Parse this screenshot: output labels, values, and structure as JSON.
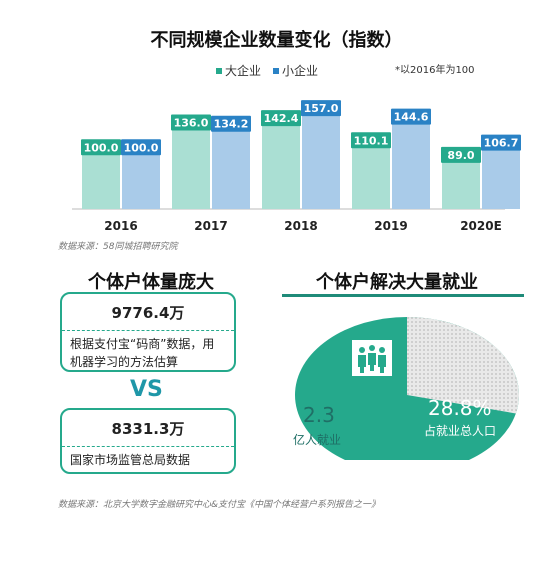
{
  "colors": {
    "large": "#25a98c",
    "small": "#2a82c5",
    "large_light": "#aadfd3",
    "small_light": "#a9cbe9",
    "accent": "#1f97a8"
  },
  "chart_data": {
    "type": "bar",
    "title": "不同规模企业数量变化（指数）",
    "categories": [
      "2016",
      "2017",
      "2018",
      "2019",
      "2020E"
    ],
    "series": [
      {
        "name": "大企业",
        "values": [
          100.0,
          136.0,
          142.4,
          110.1,
          89.0
        ]
      },
      {
        "name": "小企业",
        "values": [
          100.0,
          134.2,
          157.0,
          144.6,
          106.7
        ]
      }
    ],
    "value_labels": [
      [
        "100.0",
        "136.0",
        "142.4",
        "110.1",
        "89.0"
      ],
      [
        "100.0",
        "134.2",
        "157.0",
        "144.6",
        "106.7"
      ]
    ],
    "note": "*以2016年为100",
    "legend_position": "top-center",
    "grid": false
  },
  "source1": "数据来源：58同城招聘研究院",
  "left": {
    "title": "个体户体量庞大",
    "box1": {
      "value": "9776.4万",
      "desc": "根据支付宝“码商”数据，用机器学习的方法估算"
    },
    "vs": "VS",
    "box2": {
      "value": "8331.3万",
      "desc": "国家市场监管总局数据"
    }
  },
  "right": {
    "title": "个体户解决大量就业",
    "pie": {
      "share_percent": 28.8
    },
    "left_value": "2.3",
    "left_label": "亿人就业",
    "right_value": "28.8%",
    "right_label": "占就业总人口",
    "icon": "people-group-icon"
  },
  "source2": "数据来源：北京大学数字金融研究中心&支付宝《中国个体经营户系列报告之一》"
}
